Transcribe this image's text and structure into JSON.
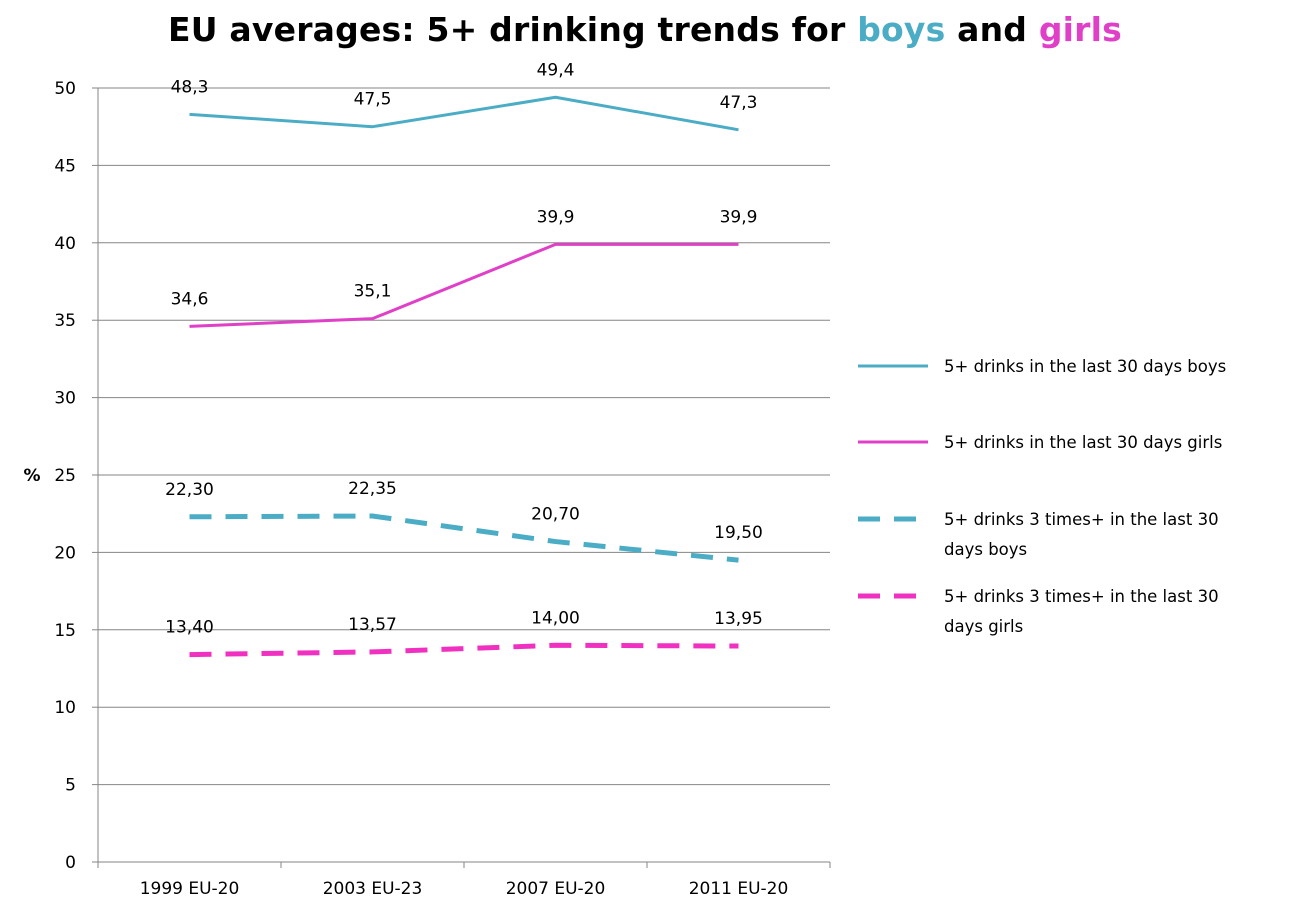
{
  "title": {
    "part1": "EU averages: 5+ drinking trends for ",
    "boys": "boys",
    "mid": " and ",
    "girls": "girls"
  },
  "colors": {
    "boys": "#4BACC6",
    "girls": "#E040C8",
    "girls_dashed": "#F030C0",
    "grid": "#868686"
  },
  "chart_data": {
    "type": "line",
    "categories": [
      "1999 EU-20",
      "2003 EU-23",
      "2007 EU-20",
      "2011 EU-20"
    ],
    "ylabel": "%",
    "ylim": [
      0,
      50
    ],
    "yticks": [
      0,
      5,
      10,
      15,
      20,
      25,
      30,
      35,
      40,
      45,
      50
    ],
    "grid": true,
    "legend_position": "right",
    "series": [
      {
        "name": "5+ drinks in the last 30 days boys",
        "legend_lines": [
          "5+ drinks in the last 30 days boys"
        ],
        "values": [
          48.3,
          47.5,
          49.4,
          47.3
        ],
        "labels": [
          "48,3",
          "47,5",
          "49,4",
          "47,3"
        ],
        "color": "#4BACC6",
        "dashed": false
      },
      {
        "name": "5+ drinks in the last 30 days girls",
        "legend_lines": [
          "5+ drinks in the last 30 days girls"
        ],
        "values": [
          34.6,
          35.1,
          39.9,
          39.9
        ],
        "labels": [
          "34,6",
          "35,1",
          "39,9",
          "39,9"
        ],
        "color": "#E040C8",
        "dashed": false
      },
      {
        "name": "5+ drinks 3 times+ in the last 30 days boys",
        "legend_lines": [
          "5+ drinks 3 times+ in the last 30",
          "days boys"
        ],
        "values": [
          22.3,
          22.35,
          20.7,
          19.5
        ],
        "labels": [
          "22,30",
          "22,35",
          "20,70",
          "19,50"
        ],
        "color": "#4BACC6",
        "dashed": true
      },
      {
        "name": "5+ drinks 3 times+ in the last 30 days girls",
        "legend_lines": [
          "5+ drinks 3 times+ in the last 30",
          "days girls"
        ],
        "values": [
          13.4,
          13.57,
          14.0,
          13.95
        ],
        "labels": [
          "13,40",
          "13,57",
          "14,00",
          "13,95"
        ],
        "color": "#F030C0",
        "dashed": true
      }
    ]
  }
}
